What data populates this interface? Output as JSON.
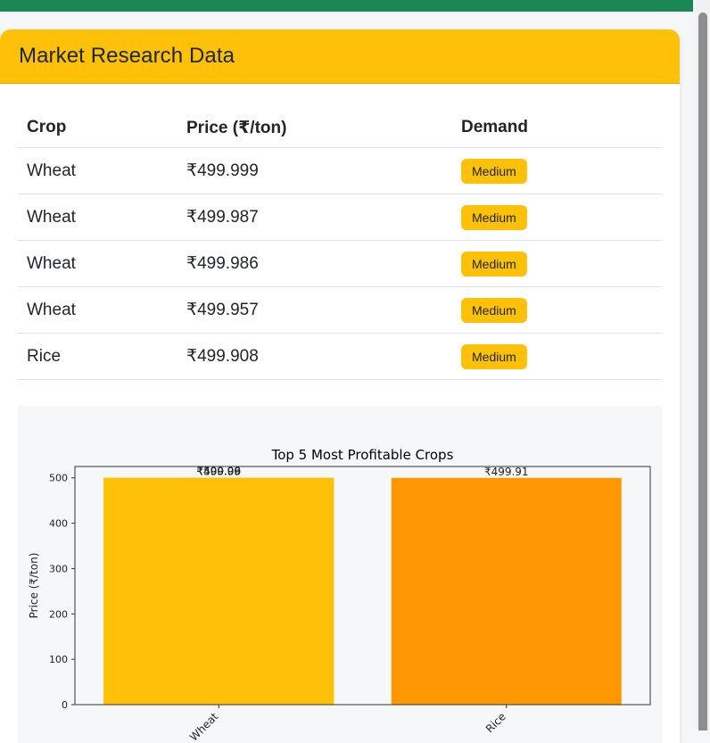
{
  "card": {
    "title": "Market Research Data"
  },
  "table": {
    "headers": {
      "crop": "Crop",
      "price": "Price (₹/ton)",
      "demand": "Demand"
    },
    "rows": [
      {
        "crop": "Wheat",
        "price": "₹499.999",
        "demand": "Medium"
      },
      {
        "crop": "Wheat",
        "price": "₹499.987",
        "demand": "Medium"
      },
      {
        "crop": "Wheat",
        "price": "₹499.986",
        "demand": "Medium"
      },
      {
        "crop": "Wheat",
        "price": "₹499.957",
        "demand": "Medium"
      },
      {
        "crop": "Rice",
        "price": "₹499.908",
        "demand": "Medium"
      }
    ]
  },
  "colors": {
    "header": "#ffc107",
    "topbar": "#198754",
    "wheat_bar": "#ffc107",
    "rice_bar": "#ff9800",
    "badge": "#ffc107"
  },
  "chart_data": {
    "type": "bar",
    "title": "Top 5 Most Profitable Crops",
    "xlabel": "",
    "ylabel": "Price (₹/ton)",
    "ylim": [
      0,
      525
    ],
    "yticks": [
      0,
      100,
      200,
      300,
      400,
      500
    ],
    "grid": false,
    "note": "four Wheat bars overlap at the same category; their labels overprint",
    "bars": [
      {
        "category": "Wheat",
        "value": 499.999,
        "label": "₹500.00",
        "color": "#ffc107"
      },
      {
        "category": "Wheat",
        "value": 499.987,
        "label": "₹499.99",
        "color": "#ffc107"
      },
      {
        "category": "Wheat",
        "value": 499.986,
        "label": "₹499.99",
        "color": "#ffc107"
      },
      {
        "category": "Wheat",
        "value": 499.957,
        "label": "₹499.96",
        "color": "#ffc107"
      },
      {
        "category": "Rice",
        "value": 499.908,
        "label": "₹499.91",
        "color": "#ff9800"
      }
    ],
    "categories": [
      "Wheat",
      "Rice"
    ]
  }
}
